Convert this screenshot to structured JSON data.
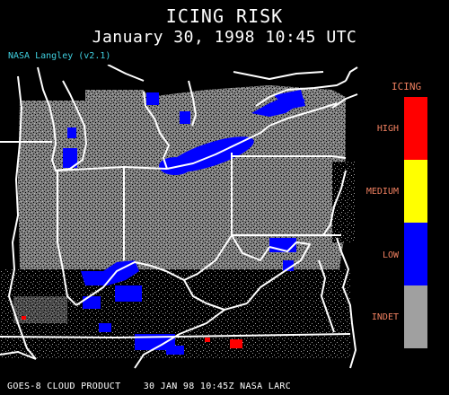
{
  "header": {
    "title": "ICING RISK",
    "subtitle": "January 30, 1998 10:45 UTC",
    "credit": "NASA Langley (v2.1)"
  },
  "legend": {
    "title": "ICING",
    "items": [
      {
        "label": "HIGH",
        "color": "#ff0000"
      },
      {
        "label": "MEDIUM",
        "color": "#ffff00"
      },
      {
        "label": "LOW",
        "color": "#0000ff"
      },
      {
        "label": "INDET",
        "color": "#a0a0a0"
      }
    ]
  },
  "footer": {
    "text": "GOES-8 CLOUD PRODUCT    30 JAN 98 10:45Z NASA LARC"
  },
  "colors": {
    "background": "#000000",
    "cloud_indet": "#a0a0a0",
    "icing_low": "#0000ff",
    "icing_high": "#ff0000",
    "borders": "#ffffff",
    "credit": "#40d0e0",
    "legend_text": "#f08060"
  }
}
